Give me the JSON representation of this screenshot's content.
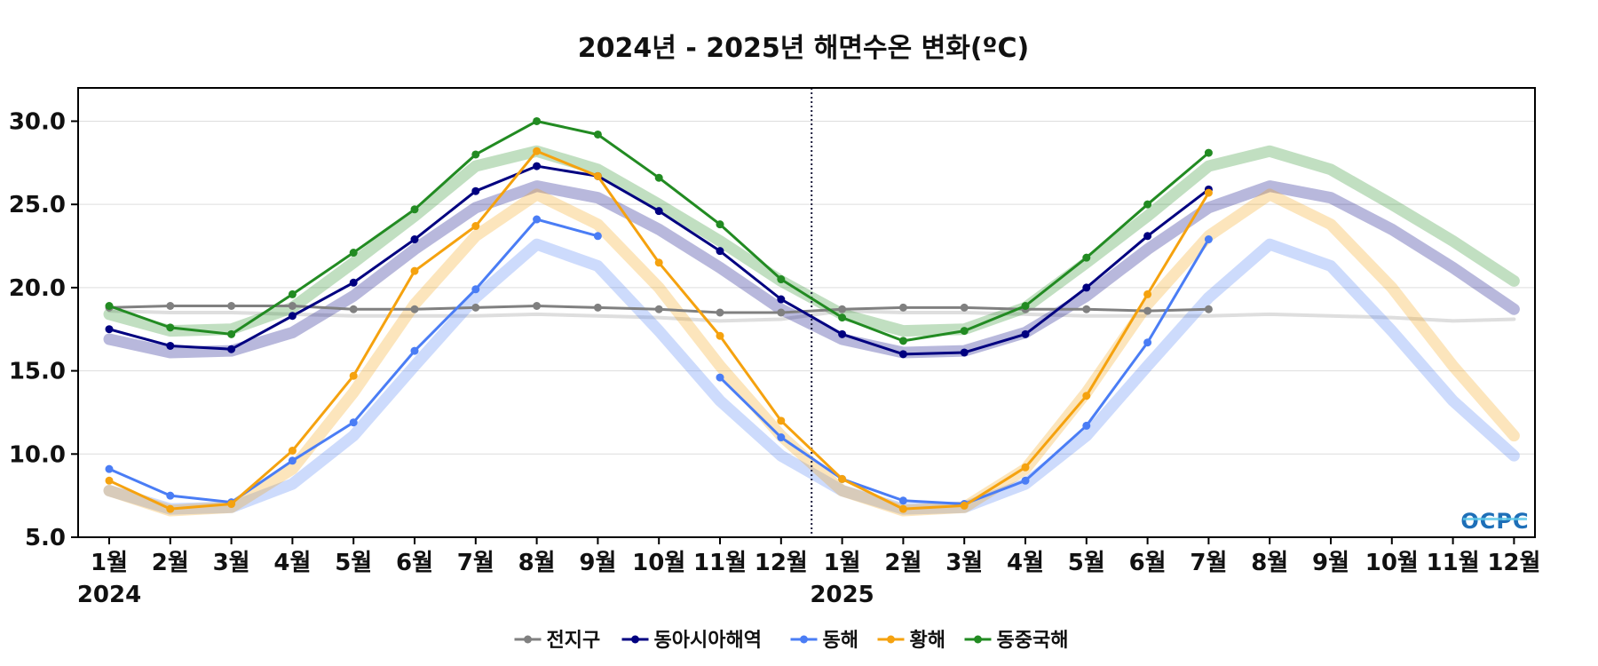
{
  "chart_data": {
    "type": "line",
    "title": "2024년 - 2025년 해면수온 변화(ºC)",
    "xlabel": "",
    "ylabel": "",
    "ylim": [
      5.0,
      32.0
    ],
    "yticks": [
      "30.0",
      "25.0",
      "20.0",
      "15.0",
      "10.0",
      "5.0"
    ],
    "categories": [
      "1월",
      "2월",
      "3월",
      "4월",
      "5월",
      "6월",
      "7월",
      "8월",
      "9월",
      "10월",
      "11월",
      "12월",
      "1월",
      "2월",
      "3월",
      "4월",
      "5월",
      "6월",
      "7월",
      "8월",
      "9월",
      "10월",
      "11월",
      "12월"
    ],
    "year_labels": [
      "2024",
      "2025"
    ],
    "divider_between": [
      "2024-12",
      "2025-01"
    ],
    "grid": "horizontal",
    "legend_position": "bottom-center",
    "logo_text": "OCPC",
    "series": [
      {
        "name": "전지구",
        "color": "#808080",
        "values": [
          18.8,
          18.9,
          18.9,
          18.9,
          18.7,
          18.7,
          18.8,
          18.9,
          18.8,
          18.7,
          18.5,
          18.5,
          18.7,
          18.8,
          18.8,
          18.7,
          18.7,
          18.6,
          18.7,
          null,
          null,
          null,
          null,
          null
        ],
        "climatology": [
          18.6,
          18.5,
          18.5,
          18.4,
          18.3,
          18.3,
          18.3,
          18.4,
          18.3,
          18.2,
          18.0,
          18.1,
          18.6,
          18.5,
          18.5,
          18.4,
          18.3,
          18.3,
          18.3,
          18.4,
          18.3,
          18.2,
          18.0,
          18.1
        ]
      },
      {
        "name": "동아시아해역",
        "color": "#000080",
        "values": [
          17.5,
          16.5,
          16.3,
          18.3,
          20.3,
          22.9,
          25.8,
          27.3,
          26.7,
          24.6,
          22.2,
          19.3,
          17.2,
          16.0,
          16.1,
          17.2,
          20.0,
          23.1,
          25.9,
          null,
          null,
          null,
          null,
          null
        ],
        "climatology": [
          16.9,
          16.1,
          16.2,
          17.3,
          19.5,
          22.3,
          24.8,
          26.1,
          25.4,
          23.5,
          21.2,
          18.7,
          16.9,
          16.1,
          16.2,
          17.3,
          19.5,
          22.3,
          24.8,
          26.1,
          25.4,
          23.5,
          21.2,
          18.7
        ]
      },
      {
        "name": "동해",
        "color": "#4a7df5",
        "values": [
          9.1,
          7.5,
          7.1,
          9.6,
          11.9,
          16.2,
          19.9,
          24.1,
          23.1,
          null,
          14.6,
          11.0,
          8.5,
          7.2,
          7.0,
          8.4,
          11.7,
          16.7,
          22.9,
          null,
          null,
          null,
          null,
          null
        ],
        "climatology": [
          7.8,
          6.7,
          6.8,
          8.2,
          11.1,
          15.3,
          19.4,
          22.6,
          21.3,
          17.4,
          13.2,
          9.9,
          7.8,
          6.7,
          6.8,
          8.2,
          11.1,
          15.3,
          19.4,
          22.6,
          21.3,
          17.4,
          13.2,
          9.9
        ]
      },
      {
        "name": "황해",
        "color": "#f5a20f",
        "values": [
          8.4,
          6.7,
          7.0,
          10.2,
          14.7,
          21.0,
          23.7,
          28.2,
          26.7,
          21.5,
          17.1,
          12.0,
          8.5,
          6.7,
          6.9,
          9.2,
          13.5,
          19.6,
          25.7,
          null,
          null,
          null,
          null,
          null
        ],
        "climatology": [
          7.8,
          6.6,
          6.8,
          9.1,
          13.7,
          19.0,
          23.1,
          25.6,
          23.8,
          20.0,
          15.3,
          11.1,
          7.8,
          6.6,
          6.8,
          9.1,
          13.7,
          19.0,
          23.1,
          25.6,
          23.8,
          20.0,
          15.3,
          11.1
        ]
      },
      {
        "name": "동중국해",
        "color": "#228b22",
        "values": [
          18.9,
          17.6,
          17.2,
          19.6,
          22.1,
          24.7,
          28.0,
          30.0,
          29.2,
          26.6,
          23.8,
          20.5,
          18.2,
          16.8,
          17.4,
          18.9,
          21.8,
          25.0,
          28.1,
          null,
          null,
          null,
          null,
          null
        ],
        "climatology": [
          18.4,
          17.4,
          17.5,
          18.8,
          21.5,
          24.3,
          27.3,
          28.2,
          27.1,
          25.0,
          22.8,
          20.4,
          18.4,
          17.4,
          17.5,
          18.8,
          21.5,
          24.3,
          27.3,
          28.2,
          27.1,
          25.0,
          22.8,
          20.4
        ]
      }
    ]
  }
}
